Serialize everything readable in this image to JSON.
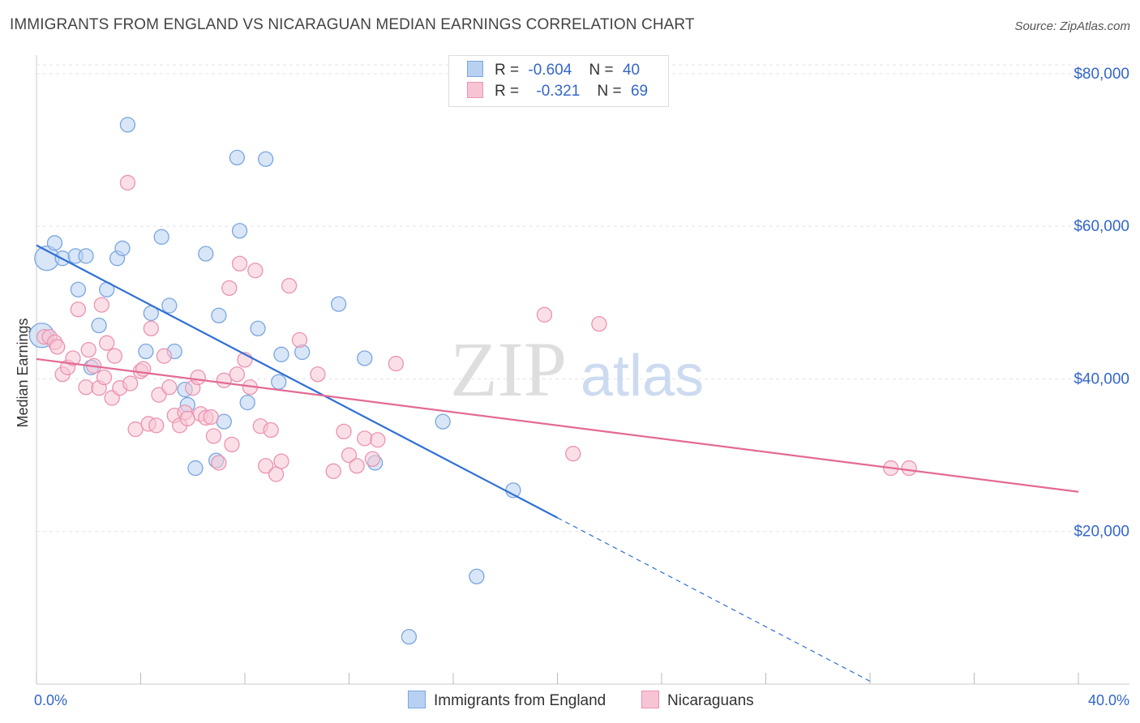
{
  "title": "IMMIGRANTS FROM ENGLAND VS NICARAGUAN MEDIAN EARNINGS CORRELATION CHART",
  "source": "Source: ZipAtlas.com",
  "watermark": {
    "zip": "ZIP",
    "atlas": "atlas"
  },
  "legend": {
    "r_label": "R =",
    "n_label": "N =",
    "rows": [
      {
        "r": "-0.604",
        "n": "40"
      },
      {
        "r": "-0.321",
        "n": "69"
      }
    ]
  },
  "bottom_legend": [
    "Immigrants from England",
    "Nicaraguans"
  ],
  "colors": {
    "blue_fill": "#b8d1f3",
    "blue_stroke": "#7aa6de",
    "blue_line": "#2f6fd4",
    "pink_fill": "#f7c4d4",
    "pink_stroke": "#eb93b1",
    "pink_line": "#e36a94",
    "axis_text": "#3366cc",
    "grid": "#e3e3e3"
  },
  "chart_data": {
    "type": "scatter",
    "title": "IMMIGRANTS FROM ENGLAND VS NICARAGUAN MEDIAN EARNINGS CORRELATION CHART",
    "xlabel": "",
    "ylabel": "Median Earnings",
    "xlim": [
      0,
      40
    ],
    "ylim": [
      0,
      82000
    ],
    "x_tick_labels": [
      "0.0%",
      "40.0%"
    ],
    "y_ticks": [
      20000,
      40000,
      60000,
      80000
    ],
    "y_tick_labels": [
      "$20,000",
      "$40,000",
      "$60,000",
      "$80,000"
    ],
    "grid": true,
    "legend_position": "top-center",
    "series": [
      {
        "name": "Immigrants from England",
        "r": -0.604,
        "n": 40,
        "trend": {
          "x0": 0,
          "y0": 57500,
          "x1": 20,
          "y1": 21800,
          "dash_to_x": 32
        },
        "points": [
          [
            0.2,
            45700
          ],
          [
            0.4,
            55800
          ],
          [
            0.7,
            57800
          ],
          [
            1.0,
            55800
          ],
          [
            1.5,
            56100
          ],
          [
            1.9,
            56100
          ],
          [
            1.6,
            51700
          ],
          [
            2.1,
            41500
          ],
          [
            2.7,
            51700
          ],
          [
            2.4,
            47000
          ],
          [
            3.1,
            55800
          ],
          [
            3.3,
            57100
          ],
          [
            3.5,
            73300
          ],
          [
            4.2,
            43600
          ],
          [
            4.4,
            48600
          ],
          [
            4.8,
            58600
          ],
          [
            5.1,
            49600
          ],
          [
            5.3,
            43600
          ],
          [
            5.7,
            38600
          ],
          [
            5.8,
            36600
          ],
          [
            6.1,
            28300
          ],
          [
            6.5,
            56400
          ],
          [
            6.9,
            29300
          ],
          [
            7.0,
            48300
          ],
          [
            7.2,
            34400
          ],
          [
            7.7,
            69000
          ],
          [
            7.8,
            59400
          ],
          [
            8.1,
            36900
          ],
          [
            8.5,
            46600
          ],
          [
            8.8,
            68800
          ],
          [
            9.3,
            39600
          ],
          [
            9.4,
            43200
          ],
          [
            10.2,
            43500
          ],
          [
            11.6,
            49800
          ],
          [
            12.6,
            42700
          ],
          [
            13.0,
            29000
          ],
          [
            14.3,
            6200
          ],
          [
            15.6,
            34400
          ],
          [
            16.9,
            14100
          ],
          [
            18.3,
            25400
          ]
        ]
      },
      {
        "name": "Nicaraguans",
        "r": -0.321,
        "n": 69,
        "trend": {
          "x0": 0,
          "y0": 42600,
          "x1": 40,
          "y1": 25200
        },
        "points": [
          [
            0.3,
            45500
          ],
          [
            0.5,
            45500
          ],
          [
            0.7,
            44800
          ],
          [
            0.8,
            44200
          ],
          [
            1.0,
            40600
          ],
          [
            1.2,
            41500
          ],
          [
            1.4,
            42700
          ],
          [
            1.6,
            49100
          ],
          [
            1.9,
            38900
          ],
          [
            2.0,
            43800
          ],
          [
            2.2,
            41700
          ],
          [
            2.4,
            38800
          ],
          [
            2.5,
            49700
          ],
          [
            2.6,
            40200
          ],
          [
            2.7,
            44700
          ],
          [
            2.9,
            37500
          ],
          [
            3.0,
            43000
          ],
          [
            3.2,
            38800
          ],
          [
            3.5,
            65700
          ],
          [
            3.6,
            39400
          ],
          [
            3.8,
            33400
          ],
          [
            4.0,
            41000
          ],
          [
            4.1,
            41300
          ],
          [
            4.3,
            34100
          ],
          [
            4.4,
            46600
          ],
          [
            4.6,
            33900
          ],
          [
            4.7,
            37900
          ],
          [
            4.9,
            43000
          ],
          [
            5.1,
            38900
          ],
          [
            5.3,
            35200
          ],
          [
            5.5,
            33900
          ],
          [
            5.7,
            35600
          ],
          [
            5.8,
            34800
          ],
          [
            6.0,
            38800
          ],
          [
            6.2,
            40200
          ],
          [
            6.3,
            35400
          ],
          [
            6.5,
            34900
          ],
          [
            6.7,
            35000
          ],
          [
            6.8,
            32500
          ],
          [
            7.0,
            29000
          ],
          [
            7.2,
            39800
          ],
          [
            7.4,
            51900
          ],
          [
            7.5,
            31400
          ],
          [
            7.7,
            40600
          ],
          [
            7.8,
            55100
          ],
          [
            8.0,
            42500
          ],
          [
            8.2,
            38900
          ],
          [
            8.4,
            54200
          ],
          [
            8.6,
            33800
          ],
          [
            8.8,
            28600
          ],
          [
            9.0,
            33300
          ],
          [
            9.2,
            27500
          ],
          [
            9.4,
            29200
          ],
          [
            9.7,
            52200
          ],
          [
            10.1,
            45100
          ],
          [
            10.8,
            40600
          ],
          [
            11.4,
            27900
          ],
          [
            11.8,
            33100
          ],
          [
            12.0,
            30000
          ],
          [
            12.3,
            28600
          ],
          [
            12.6,
            32200
          ],
          [
            12.9,
            29500
          ],
          [
            13.1,
            32000
          ],
          [
            13.8,
            42000
          ],
          [
            19.5,
            48400
          ],
          [
            20.6,
            30200
          ],
          [
            21.6,
            47200
          ],
          [
            32.8,
            28300
          ],
          [
            33.5,
            28300
          ]
        ]
      }
    ]
  }
}
